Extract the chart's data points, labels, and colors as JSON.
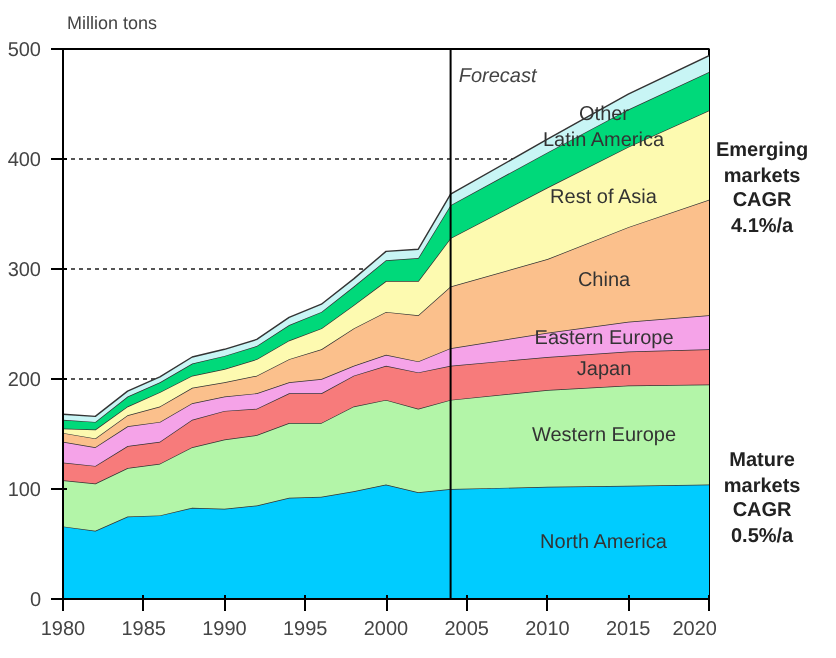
{
  "chart_data": {
    "type": "area",
    "stacked": true,
    "ylabel": "Million tons",
    "x": [
      1980,
      1982,
      1984,
      1986,
      1988,
      1990,
      1992,
      1994,
      1996,
      1998,
      2000,
      2002,
      2004,
      2010,
      2015,
      2020
    ],
    "series": [
      {
        "name": "North America",
        "color": "#00ccff",
        "values": [
          66,
          62,
          75,
          76,
          83,
          82,
          85,
          92,
          93,
          98,
          104,
          97,
          100,
          102,
          103,
          104
        ]
      },
      {
        "name": "Western Europe",
        "color": "#b3f5a8",
        "values": [
          42,
          43,
          44,
          47,
          55,
          63,
          64,
          68,
          67,
          77,
          77,
          76,
          81,
          88,
          91,
          91
        ]
      },
      {
        "name": "Japan",
        "color": "#f77b7b",
        "values": [
          16,
          16,
          20,
          20,
          25,
          26,
          24,
          27,
          27,
          28,
          31,
          33,
          31,
          30,
          31,
          32
        ]
      },
      {
        "name": "Eastern Europe",
        "color": "#f5a3e8",
        "values": [
          19,
          17,
          18,
          18,
          15,
          13,
          14,
          10,
          13,
          9,
          10,
          10,
          16,
          22,
          27,
          31
        ]
      },
      {
        "name": "China",
        "color": "#fbc08c",
        "values": [
          8,
          8,
          10,
          14,
          14,
          13,
          16,
          21,
          27,
          34,
          39,
          42,
          56,
          67,
          86,
          105
        ]
      },
      {
        "name": "Rest of Asia",
        "color": "#fdfab0",
        "values": [
          4,
          8,
          8,
          13,
          11,
          12,
          15,
          17,
          19,
          21,
          28,
          31,
          44,
          65,
          73,
          81
        ]
      },
      {
        "name": "Latin America",
        "color": "#00d97a",
        "values": [
          8,
          7,
          9,
          9,
          11,
          12,
          12,
          14,
          15,
          17,
          19,
          21,
          30,
          32,
          34,
          35
        ]
      },
      {
        "name": "Other",
        "color": "#c8f5f5",
        "values": [
          5,
          5,
          5,
          5,
          6,
          6,
          6,
          7,
          7,
          7,
          8,
          8,
          10,
          12,
          14,
          15
        ]
      }
    ],
    "xlim": [
      1980,
      2020
    ],
    "ylim": [
      0,
      500
    ],
    "xticks": [
      1980,
      1985,
      1990,
      1995,
      2000,
      2005,
      2010,
      2015,
      2020
    ],
    "yticks": [
      0,
      100,
      200,
      300,
      400,
      500
    ],
    "grid": "y",
    "legend": false,
    "ref_lines": [
      {
        "axis": "x",
        "value": 2004,
        "label": "Forecast"
      }
    ],
    "annotations": [
      "Emerging markets CAGR 4.1%/a",
      "Mature markets CAGR 0.5%/a"
    ]
  }
}
